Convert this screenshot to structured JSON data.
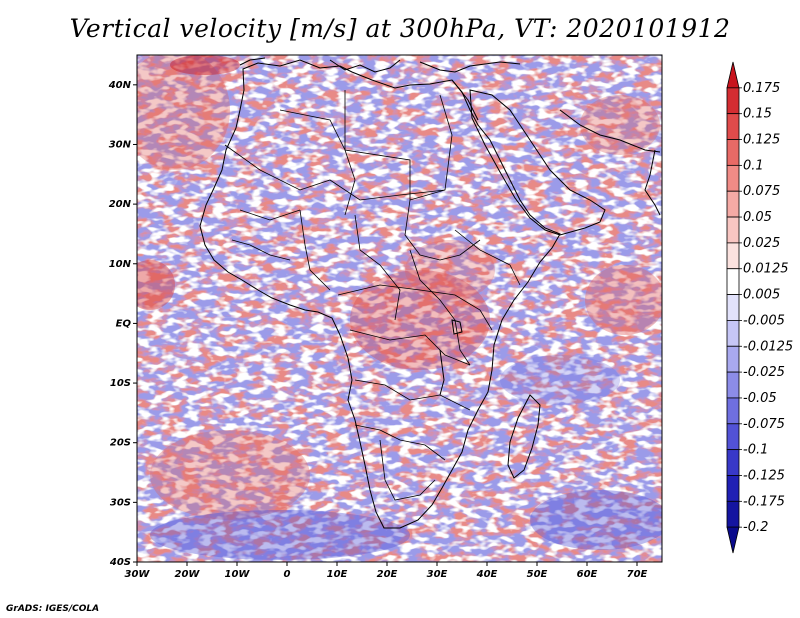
{
  "title": "Vertical velocity [m/s] at 300hPa, VT: 2020101912",
  "credit": "GrADS: IGES/COLA",
  "map": {
    "lon_range": [
      -30,
      75
    ],
    "lat_range": [
      -40,
      45
    ],
    "lon_ticks": [
      "30W",
      "20W",
      "10W",
      "0",
      "10E",
      "20E",
      "30E",
      "40E",
      "50E",
      "60E",
      "70E"
    ],
    "lat_ticks": [
      "40S",
      "30S",
      "20S",
      "10S",
      "EQ",
      "10N",
      "20N",
      "30N",
      "40N"
    ],
    "field": "Vertical velocity",
    "units": "m/s",
    "level": "300hPa",
    "valid_time": "2020101912"
  },
  "colorbar": {
    "labels": [
      "0.175",
      "0.15",
      "0.125",
      "0.1",
      "0.075",
      "0.05",
      "0.025",
      "0.0125",
      "0.005",
      "-0.005",
      "-0.0125",
      "-0.025",
      "-0.05",
      "-0.075",
      "-0.1",
      "-0.125",
      "-0.175",
      "-0.2"
    ],
    "colors": [
      "#c8141e",
      "#d42d32",
      "#e04b4b",
      "#e86a66",
      "#f08b86",
      "#f5aaa5",
      "#f8c6c2",
      "#fbe2df",
      "#ffffff",
      "#e2e2fb",
      "#c6c6f6",
      "#a9a9ef",
      "#8c8ce8",
      "#6f6fe0",
      "#5252d6",
      "#3838c8",
      "#2020b4",
      "#1414a0",
      "#0a0a8c"
    ]
  }
}
